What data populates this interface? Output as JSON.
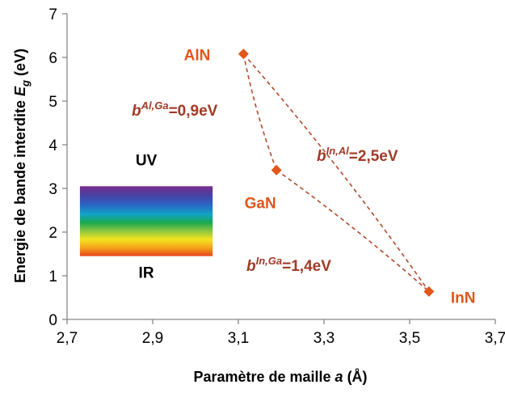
{
  "colors": {
    "marker": "#e0561b",
    "point_label": "#e0561b",
    "bowing_label": "#a03a26",
    "curve": "#b24a2e"
  },
  "chart_data": {
    "type": "scatter",
    "xlabel": {
      "main": "Paramètre de maille ",
      "var": "a",
      "unit": " (Å)"
    },
    "ylabel": {
      "main": "Energie de bande interdite ",
      "var": "E",
      "sub": "g",
      "unit": " (eV)"
    },
    "xlim": [
      2.7,
      3.7
    ],
    "ylim": [
      0,
      7
    ],
    "xticks": [
      "2,7",
      "2,9",
      "3,1",
      "3,3",
      "3,5",
      "3,7"
    ],
    "yticks": [
      "0",
      "1",
      "2",
      "3",
      "4",
      "5",
      "6",
      "7"
    ],
    "grid": false,
    "legend": "none",
    "points": [
      {
        "name": "AlN",
        "x": 3.112,
        "y": 6.08
      },
      {
        "name": "GaN",
        "x": 3.189,
        "y": 3.42
      },
      {
        "name": "InN",
        "x": 3.545,
        "y": 0.64
      }
    ],
    "bowing": [
      {
        "from": "AlN",
        "to": "GaN",
        "label": "b",
        "sup": "Al,Ga",
        "value": "=0,9eV"
      },
      {
        "from": "AlN",
        "to": "InN",
        "label": "b",
        "sup": "In,Al",
        "value": "=2,5eV"
      },
      {
        "from": "GaN",
        "to": "InN",
        "label": "b",
        "sup": "In,Ga",
        "value": "=1,4eV"
      }
    ],
    "spectrum": {
      "x_range": [
        2.73,
        3.04
      ],
      "y_range": [
        1.45,
        3.05
      ],
      "top_label": "UV",
      "bottom_label": "IR"
    }
  }
}
